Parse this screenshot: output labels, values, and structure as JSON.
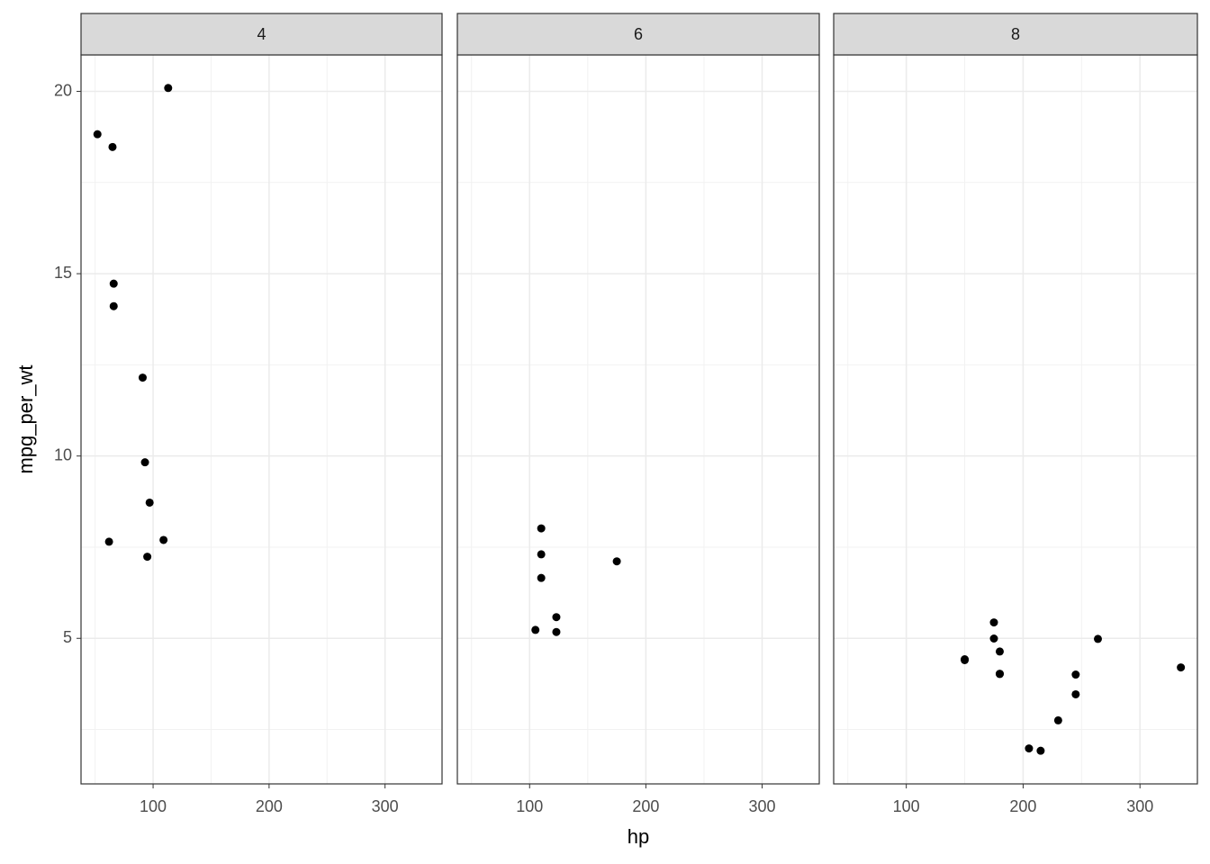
{
  "chart_data": {
    "type": "scatter",
    "xlabel": "hp",
    "ylabel": "mpg_per_wt",
    "xlim": [
      37.85,
      349.15
    ],
    "ylim": [
      1.008,
      21.0
    ],
    "xticks": [
      100,
      200,
      300
    ],
    "yticks": [
      5,
      10,
      15,
      20
    ],
    "grid": true,
    "minor_grid": true,
    "color": "#000000",
    "facets": [
      {
        "label": "4",
        "x": [
          93,
          62,
          95,
          66,
          52,
          65,
          97,
          66,
          91,
          113,
          109
        ],
        "y": [
          9.828,
          7.649,
          7.238,
          14.727,
          18.824,
          18.474,
          8.722,
          14.109,
          12.15,
          20.092,
          7.698
        ]
      },
      {
        "label": "6",
        "x": [
          110,
          110,
          110,
          105,
          123,
          123,
          175
        ],
        "y": [
          8.015,
          7.304,
          6.656,
          5.231,
          5.581,
          5.174,
          7.112
        ]
      },
      {
        "label": "8",
        "x": [
          175,
          245,
          180,
          180,
          180,
          205,
          215,
          230,
          150,
          150,
          245,
          175,
          264,
          335
        ],
        "y": [
          5.436,
          4.006,
          4.029,
          4.638,
          4.021,
          1.981,
          1.917,
          2.75,
          4.403,
          4.425,
          3.464,
          4.994,
          4.984,
          4.202
        ]
      }
    ]
  }
}
